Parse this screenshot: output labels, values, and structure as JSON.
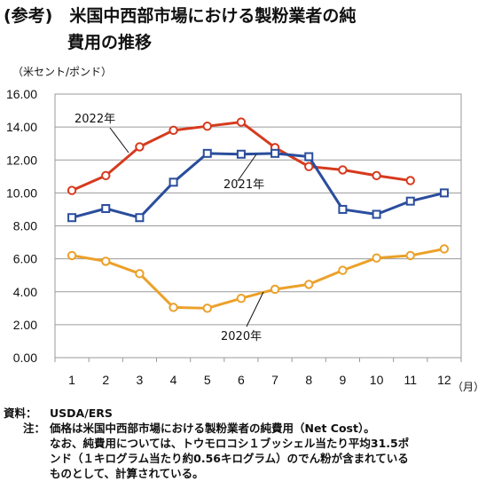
{
  "title": {
    "line1": "(参考)　米国中西部市場における製粉業者の純",
    "line2": "費用の推移"
  },
  "chart_data": {
    "type": "line",
    "ylabel": "（米セント/ポンド）",
    "xunit": "（月）",
    "categories": [
      "1",
      "2",
      "3",
      "4",
      "5",
      "6",
      "7",
      "8",
      "9",
      "10",
      "11",
      "12"
    ],
    "ylim": [
      0,
      16
    ],
    "yticks": [
      "0.00",
      "2.00",
      "4.00",
      "6.00",
      "8.00",
      "10.00",
      "12.00",
      "14.00",
      "16.00"
    ],
    "grid": true,
    "series": [
      {
        "name": "2022年",
        "color": "#d63a1e",
        "marker": "circle",
        "values": [
          10.15,
          11.05,
          12.8,
          13.8,
          14.05,
          14.3,
          12.75,
          11.6,
          11.4,
          11.05,
          10.75,
          null
        ]
      },
      {
        "name": "2021年",
        "color": "#2a4d9c",
        "marker": "square",
        "values": [
          8.5,
          9.05,
          8.5,
          10.65,
          12.4,
          12.35,
          12.4,
          12.2,
          9.0,
          8.7,
          9.5,
          10.0
        ]
      },
      {
        "name": "2020年",
        "color": "#eba12a",
        "marker": "circle",
        "values": [
          6.2,
          5.85,
          5.1,
          3.05,
          3.0,
          3.6,
          4.15,
          4.45,
          5.3,
          6.05,
          6.2,
          6.6
        ]
      }
    ]
  },
  "notes": {
    "source_label": "資料：",
    "source": "USDA/ERS",
    "note_label": "注：",
    "note1": "価格は米国中西部市場における製粉業者の純費用（Net Cost）。",
    "note2": "なお、純費用については、トウモロコシ１ブッシェル当たり平均31.5ポ",
    "note3": "ンド（１キログラム当たり約0.56キログラム）のでん粉が含まれている",
    "note4": "ものとして、計算されている。"
  }
}
